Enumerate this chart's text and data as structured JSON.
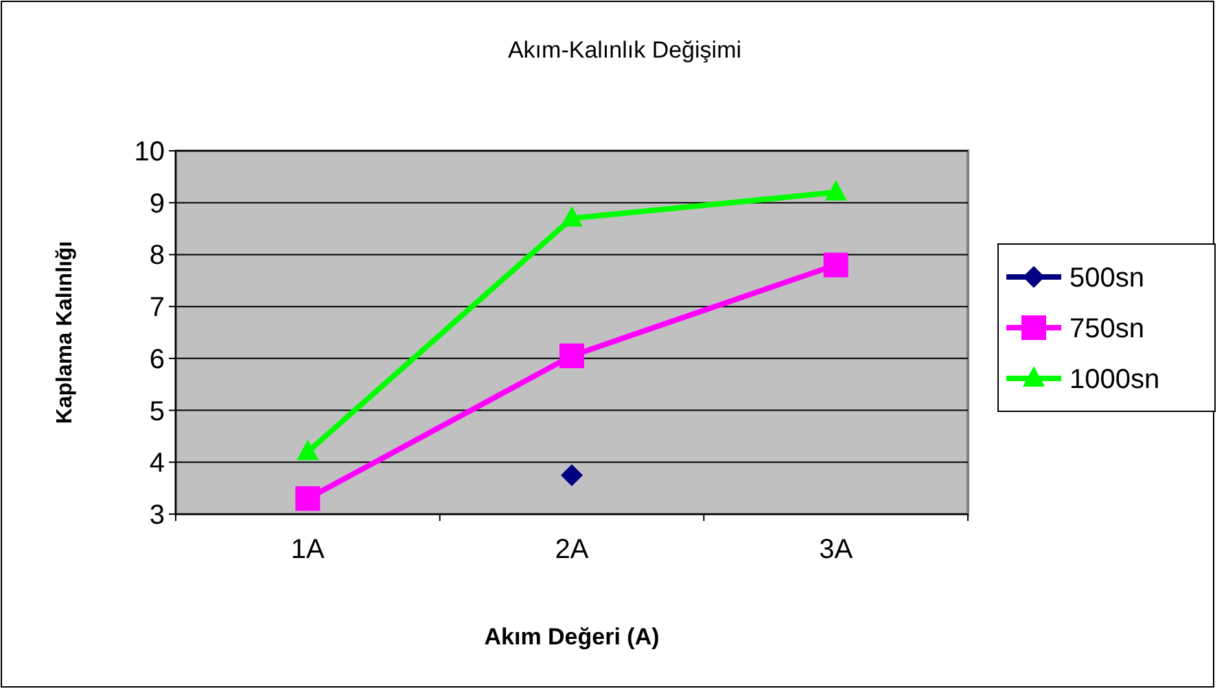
{
  "chart_data": {
    "type": "line",
    "title": "Akım-Kalınlık Değişimi",
    "xlabel": "Akım Değeri (A)",
    "ylabel": "Kaplama Kalınlığı",
    "categories": [
      "1A",
      "2A",
      "3A"
    ],
    "ylim": [
      3,
      10
    ],
    "yticks": [
      3,
      4,
      5,
      6,
      7,
      8,
      9,
      10
    ],
    "grid": "y",
    "legend": "right",
    "series": [
      {
        "name": "500sn",
        "color": "#000080",
        "marker": "diamond",
        "values": [
          null,
          3.75,
          null
        ]
      },
      {
        "name": "750sn",
        "color": "#ff00ff",
        "marker": "square",
        "values": [
          3.3,
          6.05,
          7.8
        ]
      },
      {
        "name": "1000sn",
        "color": "#00ff00",
        "marker": "triangle",
        "values": [
          4.2,
          8.7,
          9.2
        ]
      }
    ]
  }
}
